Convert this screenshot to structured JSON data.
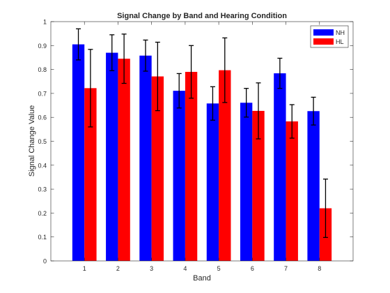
{
  "chart_data": {
    "type": "bar",
    "title": "Signal Change by Band and Hearing Condition",
    "xlabel": "Band",
    "ylabel": "Signal Change Value",
    "categories": [
      "1",
      "2",
      "3",
      "4",
      "5",
      "6",
      "7",
      "8"
    ],
    "ylim": [
      0,
      1
    ],
    "yticks": [
      "0",
      "0.1",
      "0.2",
      "0.3",
      "0.4",
      "0.5",
      "0.6",
      "0.7",
      "0.8",
      "0.9",
      "1"
    ],
    "series": [
      {
        "name": "NH",
        "color": "#0000ff",
        "values": [
          0.905,
          0.87,
          0.858,
          0.711,
          0.658,
          0.661,
          0.784,
          0.626
        ],
        "error": [
          0.065,
          0.075,
          0.065,
          0.072,
          0.07,
          0.06,
          0.063,
          0.058
        ]
      },
      {
        "name": "HL",
        "color": "#ff0000",
        "values": [
          0.722,
          0.845,
          0.771,
          0.79,
          0.797,
          0.627,
          0.583,
          0.22
        ],
        "error": [
          0.162,
          0.103,
          0.143,
          0.11,
          0.135,
          0.117,
          0.07,
          0.122
        ]
      }
    ],
    "legend": "top-right",
    "grid": false
  }
}
